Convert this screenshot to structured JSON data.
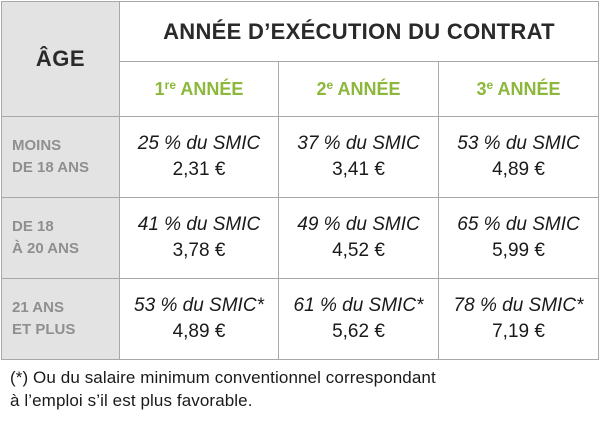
{
  "table": {
    "age_header": "ÂGE",
    "title": "ANNÉE D’EXÉCUTION DU CONTRAT",
    "years": [
      {
        "num": "1",
        "sup": "re",
        "label": " ANNÉE"
      },
      {
        "num": "2",
        "sup": "e",
        "label": " ANNÉE"
      },
      {
        "num": "3",
        "sup": "e",
        "label": " ANNÉE"
      }
    ],
    "rows": [
      {
        "age_line1": "MOINS",
        "age_line2": "DE 18 ANS",
        "cells": [
          {
            "pct": "25 % du SMIC",
            "amount": "2,31 €"
          },
          {
            "pct": "37 % du SMIC",
            "amount": "3,41 €"
          },
          {
            "pct": "53 % du SMIC",
            "amount": "4,89 €"
          }
        ]
      },
      {
        "age_line1": "DE 18",
        "age_line2": "À 20 ANS",
        "cells": [
          {
            "pct": "41 % du SMIC",
            "amount": "3,78 €"
          },
          {
            "pct": "49 % du SMIC",
            "amount": "4,52 €"
          },
          {
            "pct": "65 % du SMIC",
            "amount": "5,99 €"
          }
        ]
      },
      {
        "age_line1": "21 ANS",
        "age_line2": "ET PLUS",
        "cells": [
          {
            "pct": "53 % du SMIC*",
            "amount": "4,89 €"
          },
          {
            "pct": "61 % du SMIC*",
            "amount": "5,62 €"
          },
          {
            "pct": "78 % du SMIC*",
            "amount": "7,19 €"
          }
        ]
      }
    ]
  },
  "footnote": {
    "line1": "(*) Ou du salaire minimum conventionnel correspondant",
    "line2": "à l’emploi s’il est plus favorable."
  }
}
